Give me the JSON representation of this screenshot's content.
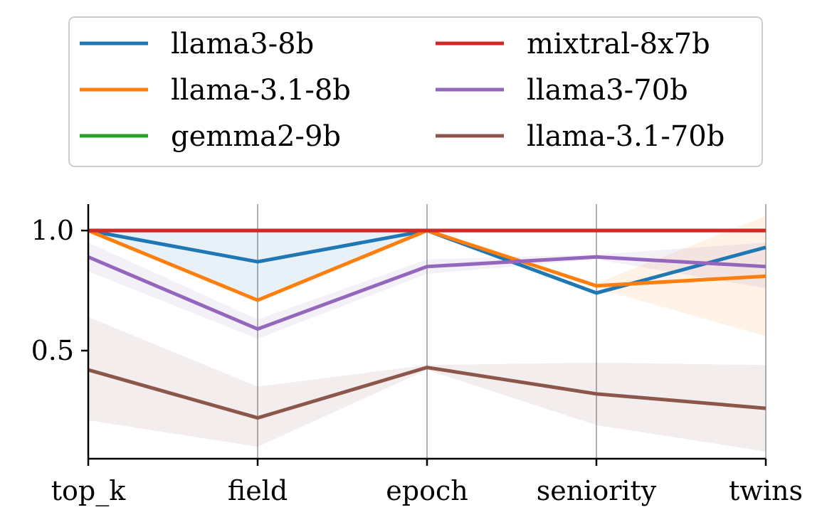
{
  "chart_data": {
    "type": "line",
    "title": "",
    "xlabel": "",
    "ylabel": "",
    "categories": [
      "top_k",
      "field",
      "epoch",
      "seniority",
      "twins"
    ],
    "ylim": [
      0.05,
      1.11
    ],
    "yticks": [
      0.5,
      1.0
    ],
    "ytick_labels": [
      "0.5",
      "1.0"
    ],
    "grid": "vertical",
    "legend_position": "top-center",
    "legend_columns": 2,
    "series": [
      {
        "name": "llama3-8b",
        "color": "#1f77b4",
        "values": [
          1.0,
          0.87,
          1.0,
          0.74,
          0.93
        ],
        "band_lower": [
          1.0,
          0.72,
          1.0,
          0.73,
          0.93
        ],
        "band_upper": [
          1.0,
          1.0,
          1.0,
          0.75,
          0.93
        ]
      },
      {
        "name": "llama-3.1-8b",
        "color": "#ff7f0e",
        "values": [
          1.0,
          0.71,
          1.0,
          0.77,
          0.81
        ],
        "band_lower": [
          1.0,
          0.71,
          1.0,
          0.76,
          0.56
        ],
        "band_upper": [
          1.0,
          0.71,
          1.0,
          0.78,
          1.06
        ]
      },
      {
        "name": "gemma2-9b",
        "color": "#2ca02c",
        "values": [
          1.0,
          1.0,
          1.0,
          1.0,
          1.0
        ],
        "band_lower": [
          1.0,
          1.0,
          1.0,
          1.0,
          1.0
        ],
        "band_upper": [
          1.0,
          1.0,
          1.0,
          1.0,
          1.0
        ]
      },
      {
        "name": "mixtral-8x7b",
        "color": "#d62728",
        "values": [
          1.0,
          1.0,
          1.0,
          1.0,
          1.0
        ],
        "band_lower": [
          1.0,
          1.0,
          1.0,
          1.0,
          1.0
        ],
        "band_upper": [
          1.0,
          1.0,
          1.0,
          1.0,
          1.0
        ]
      },
      {
        "name": "llama3-70b",
        "color": "#9467bd",
        "values": [
          0.89,
          0.59,
          0.85,
          0.89,
          0.85
        ],
        "band_lower": [
          0.83,
          0.55,
          0.82,
          0.88,
          0.76
        ],
        "band_upper": [
          0.95,
          0.63,
          0.88,
          0.9,
          0.95
        ]
      },
      {
        "name": "llama-3.1-70b",
        "color": "#8c564b",
        "values": [
          0.42,
          0.22,
          0.43,
          0.32,
          0.26
        ],
        "band_lower": [
          0.21,
          0.1,
          0.42,
          0.19,
          0.08
        ],
        "band_upper": [
          0.64,
          0.35,
          0.44,
          0.45,
          0.44
        ]
      }
    ]
  }
}
